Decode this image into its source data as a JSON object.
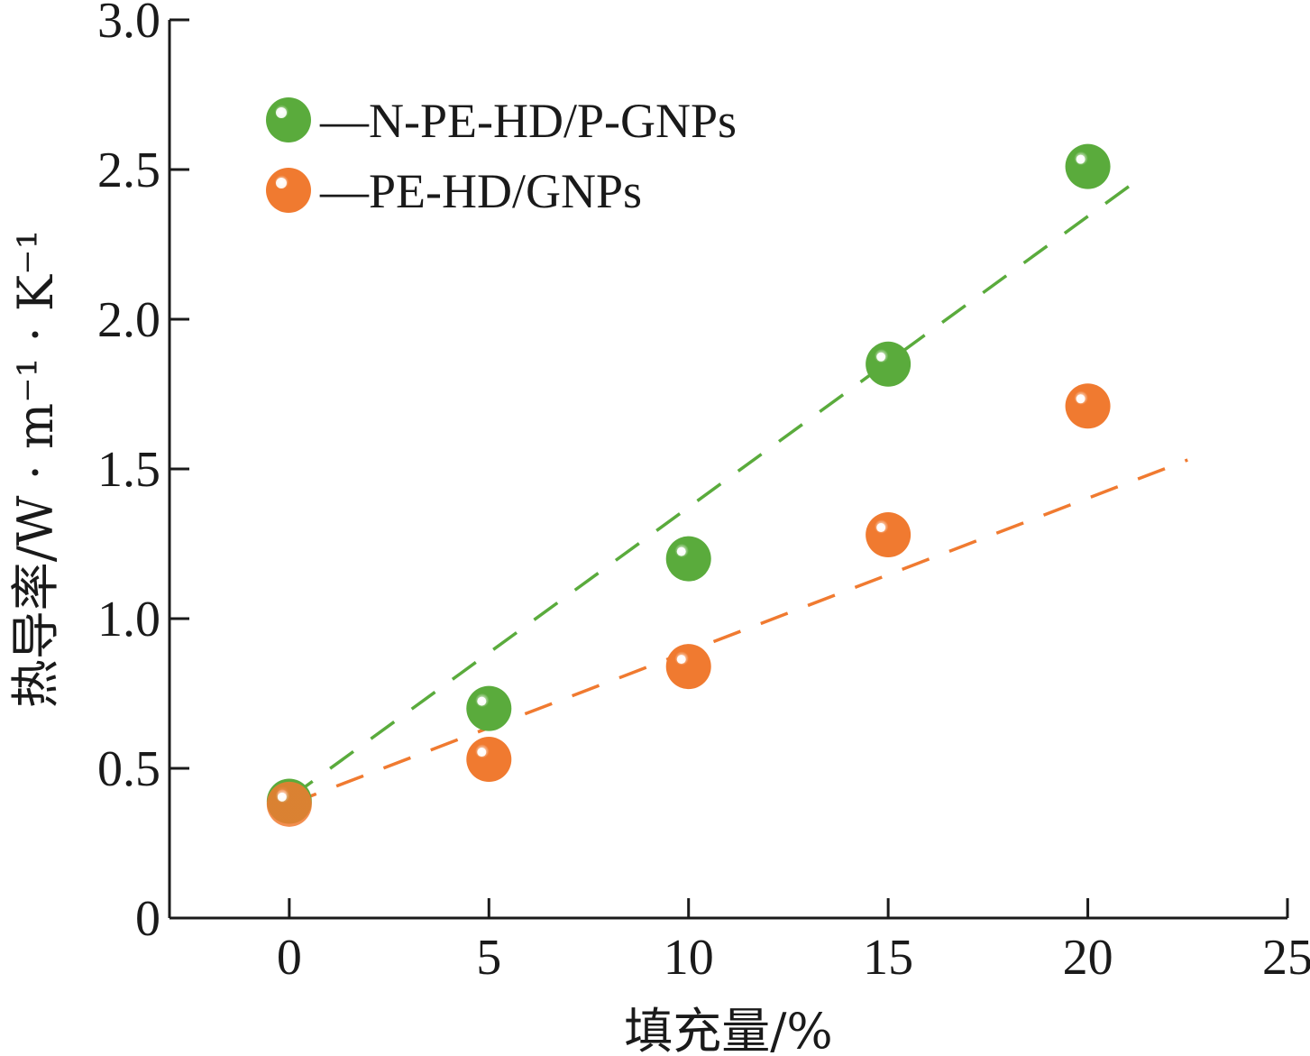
{
  "chart_data": {
    "type": "scatter",
    "title": "",
    "xlabel": "填充量/%",
    "ylabel": "热导率/W · m⁻¹ · K⁻¹",
    "xlim": [
      -3,
      25
    ],
    "ylim": [
      0,
      3.0
    ],
    "x_ticks": [
      0,
      5,
      10,
      15,
      20,
      25
    ],
    "x_tick_labels": [
      "0",
      "5",
      "10",
      "15",
      "20",
      "25"
    ],
    "y_ticks": [
      0,
      0.5,
      1.0,
      1.5,
      2.0,
      2.5,
      3.0
    ],
    "y_tick_labels": [
      "0",
      "0.5",
      "1.0",
      "1.5",
      "2.0",
      "2.5",
      "3.0"
    ],
    "grid": false,
    "legend_position": "top-left",
    "series": [
      {
        "name": "—N-PE-HD/P-GNPs",
        "color": "#5aab3c",
        "marker": "sphere",
        "x": [
          0,
          5,
          10,
          15,
          20
        ],
        "y": [
          0.39,
          0.7,
          1.2,
          1.85,
          2.51
        ],
        "trend": {
          "style": "dashed",
          "x": [
            0,
            21.3
          ],
          "y": [
            0.4,
            2.47
          ]
        }
      },
      {
        "name": "—PE-HD/GNPs",
        "color": "#f07a30",
        "marker": "sphere",
        "x": [
          0,
          5,
          10,
          15,
          20
        ],
        "y": [
          0.38,
          0.53,
          0.84,
          1.28,
          1.71
        ],
        "trend": {
          "style": "dashed",
          "x": [
            0,
            22.5
          ],
          "y": [
            0.38,
            1.53
          ]
        }
      }
    ]
  }
}
